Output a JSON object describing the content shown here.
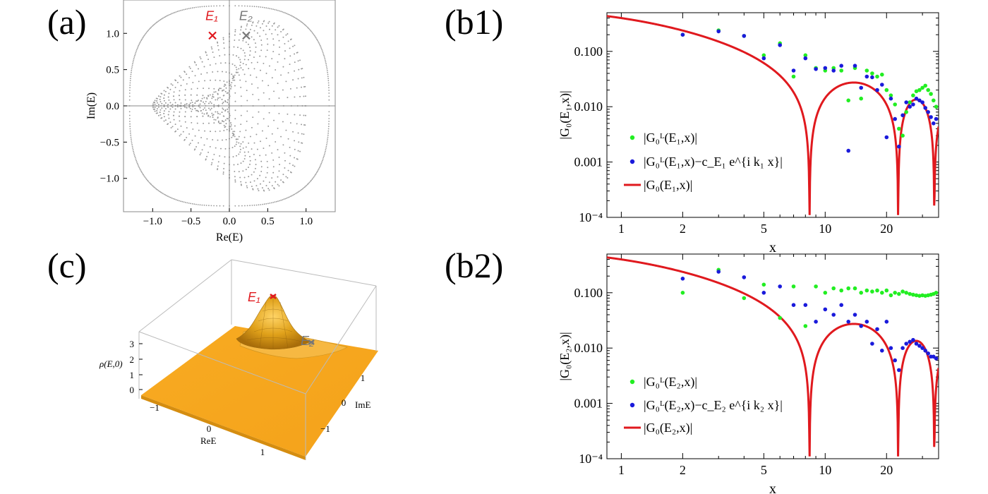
{
  "panel_labels": [
    "(a)",
    "(b1)",
    "(c)",
    "(b2)"
  ],
  "chart_data": [
    {
      "id": "a",
      "type": "scatter",
      "xlabel": "Re(E)",
      "ylabel": "Im(E)",
      "xlim": [
        -1.38,
        1.38
      ],
      "ylim": [
        -1.46,
        1.46
      ],
      "xticks": [
        "−1.0",
        "−0.5",
        "0.0",
        "0.5",
        "1.0"
      ],
      "xtick_values": [
        -1.0,
        -0.5,
        0.0,
        0.5,
        1.0
      ],
      "yticks": [
        "−1.0",
        "−0.5",
        "0.0",
        "0.5",
        "1.0"
      ],
      "ytick_values": [
        -1.0,
        -0.5,
        0.0,
        0.5,
        1.0
      ],
      "spectrum_color": "#999999",
      "markers": [
        {
          "name": "E₁",
          "x": -0.22,
          "y": 0.97,
          "color": "#e0191e"
        },
        {
          "name": "E₂",
          "x": 0.22,
          "y": 0.97,
          "color": "#777777"
        }
      ]
    },
    {
      "id": "b1",
      "type": "scatter",
      "xscale": "log",
      "yscale": "log",
      "xlim": [
        0.85,
        36
      ],
      "ylim": [
        0.0001,
        0.5
      ],
      "xlabel": "x",
      "ylabel": "|G₀(E₁,x)|",
      "xticks": [
        "1",
        "2",
        "5",
        "10",
        "20"
      ],
      "xtick_values": [
        1,
        2,
        5,
        10,
        20
      ],
      "yticks": [
        "0.100",
        "0.010",
        "0.001",
        "10⁻⁴"
      ],
      "ytick_values": [
        0.1,
        0.01,
        0.001,
        0.0001
      ],
      "series": [
        {
          "name": "|G₀ᴸ(E₁,x)|",
          "color": "#22ee22",
          "kind": "points",
          "x": [
            2,
            3,
            4,
            5,
            6,
            7,
            8,
            9,
            10,
            11,
            12,
            13,
            14,
            15,
            16,
            17,
            18,
            19,
            20,
            21,
            22,
            23,
            24,
            25,
            26,
            27,
            28,
            29,
            30,
            31,
            32,
            33,
            34,
            35
          ],
          "y": [
            0.2,
            0.24,
            0.19,
            0.085,
            0.14,
            0.035,
            0.085,
            0.05,
            0.045,
            0.05,
            0.045,
            0.013,
            0.05,
            0.014,
            0.045,
            0.04,
            0.035,
            0.038,
            0.02,
            0.016,
            0.011,
            0.004,
            0.003,
            0.008,
            0.012,
            0.016,
            0.019,
            0.02,
            0.022,
            0.024,
            0.02,
            0.017,
            0.013,
            0.01
          ]
        },
        {
          "name": "|G₀ᴸ(E₁,x)−c_E₁ e^{i k₁ x}|",
          "color": "#1a1adb",
          "kind": "points",
          "x": [
            2,
            3,
            4,
            5,
            6,
            7,
            8,
            9,
            10,
            11,
            12,
            13,
            14,
            15,
            16,
            17,
            18,
            19,
            20,
            21,
            22,
            23,
            24,
            25,
            26,
            27,
            28,
            29,
            30,
            31,
            32,
            33,
            34,
            35
          ],
          "y": [
            0.2,
            0.23,
            0.19,
            0.075,
            0.13,
            0.045,
            0.075,
            0.048,
            0.05,
            0.045,
            0.055,
            0.0016,
            0.055,
            0.022,
            0.035,
            0.034,
            0.02,
            0.025,
            0.0028,
            0.014,
            0.006,
            0.0019,
            0.007,
            0.012,
            0.01,
            0.011,
            0.014,
            0.013,
            0.012,
            0.0095,
            0.008,
            0.0065,
            0.005,
            0.006
          ]
        },
        {
          "name": "|G₀(E₁,x)|",
          "color": "#e0191e",
          "kind": "curve",
          "zeros": [
            8.38,
            22.8,
            34.3
          ]
        }
      ],
      "legend_position": "lower-left"
    },
    {
      "id": "c",
      "type": "surface3d",
      "zlabel": "ρ(E,0)",
      "xlabel": "ReE",
      "ylabel": "ImE",
      "zticks": [
        "0",
        "1",
        "2",
        "3"
      ],
      "xticks": [
        "−1",
        "0",
        "1"
      ],
      "yticks": [
        "1",
        "0",
        "−1"
      ],
      "surface_color": "#f5a81c",
      "markers": [
        {
          "name": "E₁",
          "color": "#e0191e"
        },
        {
          "name": "E₂",
          "color": "#777777"
        }
      ]
    },
    {
      "id": "b2",
      "type": "scatter",
      "xscale": "log",
      "yscale": "log",
      "xlim": [
        0.85,
        36
      ],
      "ylim": [
        0.0001,
        0.5
      ],
      "xlabel": "x",
      "ylabel": "|G₀(E₂,x)|",
      "xticks": [
        "1",
        "2",
        "5",
        "10",
        "20"
      ],
      "xtick_values": [
        1,
        2,
        5,
        10,
        20
      ],
      "yticks": [
        "0.100",
        "0.010",
        "0.001",
        "10⁻⁴"
      ],
      "ytick_values": [
        0.1,
        0.01,
        0.001,
        0.0001
      ],
      "series": [
        {
          "name": "|G₀ᴸ(E₂,x)|",
          "color": "#22ee22",
          "kind": "points",
          "x": [
            2,
            3,
            4,
            5,
            6,
            7,
            8,
            9,
            10,
            11,
            12,
            13,
            14,
            15,
            16,
            17,
            18,
            19,
            20,
            21,
            22,
            23,
            24,
            25,
            26,
            27,
            28,
            29,
            30,
            31,
            32,
            33,
            34,
            35
          ],
          "y": [
            0.1,
            0.26,
            0.08,
            0.14,
            0.035,
            0.13,
            0.025,
            0.13,
            0.1,
            0.12,
            0.11,
            0.12,
            0.12,
            0.1,
            0.11,
            0.105,
            0.11,
            0.1,
            0.11,
            0.09,
            0.1,
            0.095,
            0.105,
            0.1,
            0.095,
            0.092,
            0.09,
            0.088,
            0.09,
            0.088,
            0.09,
            0.092,
            0.095,
            0.1
          ]
        },
        {
          "name": "|G₀ᴸ(E₂,x)−c_E₂ e^{i k₂ x}|",
          "color": "#1a1adb",
          "kind": "points",
          "x": [
            2,
            3,
            4,
            5,
            6,
            7,
            8,
            9,
            10,
            11,
            12,
            13,
            14,
            15,
            16,
            17,
            18,
            19,
            20,
            21,
            22,
            23,
            24,
            25,
            26,
            27,
            28,
            29,
            30,
            31,
            32,
            33,
            34,
            35
          ],
          "y": [
            0.18,
            0.24,
            0.19,
            0.1,
            0.13,
            0.06,
            0.06,
            0.03,
            0.05,
            0.04,
            0.06,
            0.03,
            0.04,
            0.025,
            0.03,
            0.012,
            0.022,
            0.009,
            0.03,
            0.01,
            0.006,
            0.004,
            0.01,
            0.012,
            0.013,
            0.014,
            0.012,
            0.011,
            0.01,
            0.009,
            0.008,
            0.007,
            0.007,
            0.0065
          ]
        },
        {
          "name": "|G₀(E₂,x)|",
          "color": "#e0191e",
          "kind": "curve",
          "zeros": [
            8.38,
            22.8,
            34.3
          ]
        }
      ],
      "legend_position": "lower-left"
    }
  ]
}
